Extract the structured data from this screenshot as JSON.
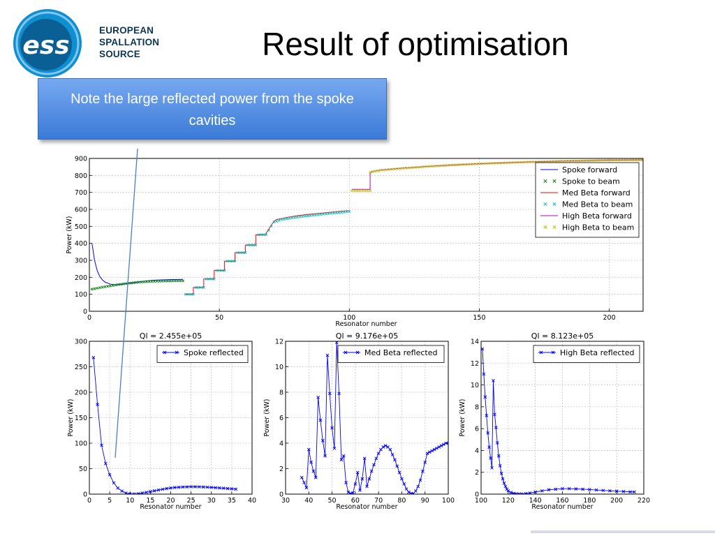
{
  "slide": {
    "title": "Result of optimisation",
    "note": "Note the large reflected power from the spoke cavities"
  },
  "logo": {
    "mark_text": "ess",
    "lines": [
      "EUROPEAN",
      "SPALLATION",
      "SOURCE"
    ],
    "colors": {
      "ring": "#0f8fd0",
      "inner": "#0a5f95",
      "text": "#0b3552"
    }
  },
  "chart_data": [
    {
      "type": "line",
      "xlabel": "Resonator number",
      "ylabel": "Power (kW)",
      "xlim": [
        0,
        213
      ],
      "ylim": [
        0,
        900
      ],
      "xticks": [
        0,
        50,
        100,
        150,
        200
      ],
      "yticks": [
        0,
        100,
        200,
        300,
        400,
        500,
        600,
        700,
        800,
        900
      ],
      "grid": true,
      "legend_position": "top-right",
      "series": [
        {
          "name": "Spoke forward",
          "style": "line",
          "color": "#0000ff",
          "x": [
            1,
            2,
            3,
            4,
            5,
            6,
            8,
            10,
            12,
            14,
            16,
            18,
            20,
            22,
            24,
            26,
            28,
            30,
            32,
            36
          ],
          "y": [
            400,
            300,
            240,
            205,
            185,
            172,
            160,
            156,
            158,
            162,
            166,
            171,
            175,
            179,
            182,
            184,
            185,
            186,
            187,
            188
          ]
        },
        {
          "name": "Spoke to beam",
          "style": "marker",
          "color": "#008000",
          "x": [
            1,
            3,
            5,
            7,
            9,
            11,
            13,
            15,
            17,
            19,
            21,
            23,
            25,
            27,
            29,
            31,
            33,
            36
          ],
          "y": [
            130,
            136,
            142,
            147,
            152,
            157,
            161,
            165,
            168,
            171,
            173,
            175,
            176,
            177,
            178,
            178,
            179,
            179
          ]
        },
        {
          "name": "Med Beta forward",
          "style": "line",
          "color": "#ff0000",
          "x": [
            37,
            40,
            40,
            44,
            44,
            48,
            48,
            52,
            52,
            56,
            56,
            60,
            60,
            64,
            64,
            68,
            68,
            71,
            72,
            76,
            80,
            84,
            88,
            92,
            96,
            100
          ],
          "y": [
            100,
            100,
            140,
            140,
            190,
            190,
            240,
            240,
            295,
            295,
            345,
            345,
            390,
            390,
            450,
            450,
            460,
            530,
            540,
            553,
            563,
            570,
            576,
            582,
            588,
            593
          ]
        },
        {
          "name": "Med Beta to beam",
          "style": "marker",
          "color": "#00bfbf",
          "x": [
            37,
            40,
            41,
            44,
            45,
            48,
            49,
            52,
            53,
            56,
            57,
            60,
            61,
            64,
            65,
            68,
            71,
            74,
            78,
            82,
            86,
            90,
            94,
            98,
            100
          ],
          "y": [
            100,
            100,
            140,
            140,
            190,
            190,
            240,
            240,
            295,
            295,
            345,
            345,
            390,
            390,
            450,
            452,
            525,
            540,
            550,
            558,
            565,
            572,
            578,
            584,
            588
          ]
        },
        {
          "name": "High Beta forward",
          "style": "line",
          "color": "#bf00bf",
          "x": [
            101,
            104,
            108,
            108,
            109,
            112,
            120,
            130,
            140,
            150,
            160,
            170,
            180,
            190,
            200,
            213
          ],
          "y": [
            718,
            718,
            718,
            818,
            825,
            832,
            843,
            853,
            862,
            869,
            875,
            880,
            884,
            887,
            890,
            892
          ]
        },
        {
          "name": "High Beta to beam",
          "style": "marker",
          "color": "#bfbf00",
          "x": [
            101,
            104,
            108,
            108,
            112,
            120,
            130,
            140,
            150,
            160,
            170,
            180,
            190,
            200,
            213
          ],
          "y": [
            710,
            710,
            710,
            818,
            830,
            841,
            852,
            861,
            868,
            874,
            879,
            883,
            886,
            889,
            891
          ]
        }
      ]
    },
    {
      "type": "line",
      "title": "Ql = 2.455e+05",
      "xlabel": "Resonator number",
      "ylabel": "Power (kW)",
      "xlim": [
        0,
        40
      ],
      "ylim": [
        0,
        300
      ],
      "xticks": [
        0,
        5,
        10,
        15,
        20,
        25,
        30,
        35,
        40
      ],
      "yticks": [
        0,
        50,
        100,
        150,
        200,
        250,
        300
      ],
      "grid": true,
      "legend_position": "top-right",
      "series": [
        {
          "name": "Spoke reflected",
          "color": "#0000ff",
          "x": [
            1,
            2,
            3,
            4,
            5,
            6,
            7,
            8,
            9,
            10,
            11,
            12,
            13,
            14,
            15,
            16,
            17,
            18,
            19,
            20,
            21,
            22,
            23,
            24,
            25,
            26,
            27,
            28,
            29,
            30,
            31,
            32,
            33,
            34,
            35,
            36
          ],
          "y": [
            268,
            176,
            96,
            60,
            38,
            22,
            12,
            6,
            2,
            0.5,
            0.3,
            0.8,
            2,
            3.5,
            5,
            6.5,
            8,
            9.5,
            11,
            12,
            13,
            13.5,
            14,
            14.2,
            14.5,
            14.5,
            14.3,
            14,
            13.6,
            13.2,
            12.7,
            12.2,
            11.6,
            11,
            10.4,
            9.8
          ]
        }
      ]
    },
    {
      "type": "line",
      "title": "Ql = 9.176e+05",
      "xlabel": "Resonator number",
      "ylabel": "Power (kW)",
      "xlim": [
        30,
        100
      ],
      "ylim": [
        0,
        12
      ],
      "xticks": [
        30,
        40,
        50,
        60,
        70,
        80,
        90,
        100
      ],
      "yticks": [
        0,
        2,
        4,
        6,
        8,
        10,
        12
      ],
      "grid": true,
      "legend_position": "top-right",
      "series": [
        {
          "name": "Med Beta reflected",
          "color": "#0000ff",
          "x": [
            37,
            38,
            39,
            40,
            41,
            42,
            43,
            44,
            45,
            46,
            47,
            48,
            49,
            50,
            51,
            52,
            53,
            54,
            55,
            56,
            57,
            58,
            59,
            60,
            61,
            62,
            63,
            64,
            65,
            66,
            67,
            68,
            69,
            70,
            71,
            72,
            73,
            74,
            75,
            76,
            77,
            78,
            79,
            80,
            81,
            82,
            83,
            84,
            85,
            86,
            87,
            88,
            89,
            90,
            91,
            92,
            93,
            94,
            95,
            96,
            97,
            98,
            99,
            100
          ],
          "y": [
            1.3,
            0.9,
            0.5,
            3.5,
            2.5,
            1.8,
            1.3,
            7.6,
            5.8,
            4.2,
            3.0,
            10.9,
            7.9,
            5.2,
            3.6,
            11.9,
            7.9,
            2.7,
            3.0,
            0.9,
            0.15,
            0.05,
            0.1,
            0.8,
            1.7,
            0.3,
            1.2,
            2.8,
            0.6,
            1.2,
            1.8,
            2.3,
            2.8,
            3.2,
            3.5,
            3.7,
            3.8,
            3.7,
            3.5,
            3.1,
            2.7,
            2.2,
            1.7,
            1.2,
            0.8,
            0.4,
            0.15,
            0.05,
            0.05,
            0.25,
            0.6,
            1.1,
            1.8,
            2.5,
            3.2,
            3.3,
            3.4,
            3.5,
            3.6,
            3.7,
            3.8,
            3.9,
            4.0,
            4.0
          ]
        }
      ]
    },
    {
      "type": "line",
      "title": "Ql = 8.123e+05",
      "xlabel": "Resonator number",
      "ylabel": "Power (kW)",
      "xlim": [
        100,
        220
      ],
      "ylim": [
        0,
        14
      ],
      "xticks": [
        100,
        120,
        140,
        160,
        180,
        200,
        220
      ],
      "yticks": [
        0,
        2,
        4,
        6,
        8,
        10,
        12,
        14
      ],
      "grid": true,
      "legend_position": "top-right",
      "series": [
        {
          "name": "High Beta reflected",
          "color": "#0000ff",
          "x": [
            101,
            102,
            103,
            104,
            105,
            106,
            107,
            108,
            109,
            110,
            111,
            112,
            113,
            114,
            115,
            116,
            117,
            118,
            119,
            120,
            122,
            124,
            126,
            128,
            130,
            133,
            136,
            140,
            145,
            150,
            155,
            160,
            165,
            170,
            175,
            180,
            185,
            190,
            195,
            200,
            205,
            210,
            213
          ],
          "y": [
            13.3,
            11.0,
            8.9,
            7.2,
            5.6,
            4.3,
            3.3,
            2.4,
            10.4,
            7.3,
            6.1,
            4.7,
            3.5,
            2.6,
            1.9,
            1.4,
            1.0,
            0.7,
            0.45,
            0.3,
            0.15,
            0.07,
            0.03,
            0.02,
            0.02,
            0.05,
            0.1,
            0.2,
            0.3,
            0.4,
            0.45,
            0.5,
            0.5,
            0.48,
            0.45,
            0.42,
            0.38,
            0.34,
            0.3,
            0.27,
            0.24,
            0.21,
            0.2
          ]
        }
      ]
    }
  ]
}
